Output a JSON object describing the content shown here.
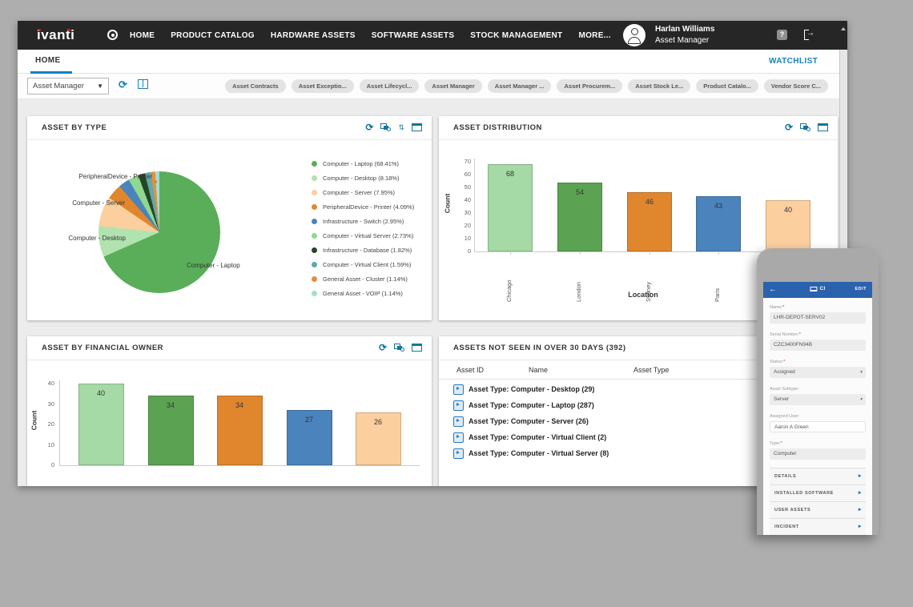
{
  "colors": {
    "accent": "#1482c0",
    "panel_icon_color": "#13749f",
    "navbar_bg": "#262626",
    "brand_dot": "#cc2127",
    "bar_palette": [
      "#a5d9a5",
      "#5ba352",
      "#e0872e",
      "#4b83bd",
      "#fbcf9e"
    ]
  },
  "navbar": {
    "brand": "ivanti",
    "items": [
      "HOME",
      "PRODUCT CATALOG",
      "HARDWARE ASSETS",
      "SOFTWARE ASSETS",
      "STOCK MANAGEMENT",
      "MORE..."
    ],
    "user": {
      "name": "Harlan Williams",
      "role": "Asset Manager"
    }
  },
  "tabs": {
    "home": "HOME",
    "watchlist": "WATCHLIST"
  },
  "toolbar": {
    "selector_value": "Asset Manager",
    "chips": [
      "Asset Contracts",
      "Asset Exceptio...",
      "Asset Lifecycl...",
      "Asset Manager",
      "Asset Manager ...",
      "Asset Procurem...",
      "Asset Stock Le...",
      "Product Catalo...",
      "Vendor Score C..."
    ]
  },
  "chart_data": [
    {
      "type": "pie",
      "title": "ASSET BY TYPE",
      "slices": [
        {
          "label": "Computer - Laptop",
          "pct": 68.41,
          "color": "#5aae5a",
          "legend": "Computer - Laptop (68.41%)"
        },
        {
          "label": "Computer - Desktop",
          "pct": 8.18,
          "color": "#b0e3b0",
          "legend": "Computer - Desktop (8.18%)"
        },
        {
          "label": "Computer - Server",
          "pct": 7.95,
          "color": "#fbcf9e",
          "legend": "Computer - Server (7.95%)"
        },
        {
          "label": "PeripheralDevice - Printer",
          "pct": 4.09,
          "color": "#e0872e",
          "legend": "PeripheralDevice - Printer (4.09%)"
        },
        {
          "label": "Infrastructure - Switch",
          "pct": 2.95,
          "color": "#4b83bd",
          "legend": "Infrastructure - Switch (2.95%)"
        },
        {
          "label": "Computer - Virtual Server",
          "pct": 2.73,
          "color": "#8fd88f",
          "legend": "Computer - Virtual Server (2.73%)"
        },
        {
          "label": "Infrastructure - Database",
          "pct": 1.82,
          "color": "#254623",
          "legend": "Infrastructure - Database (1.82%)"
        },
        {
          "label": "Computer - Virtual Client",
          "pct": 1.59,
          "color": "#5fa8ad",
          "legend": "Computer - Virtual Client (1.59%)"
        },
        {
          "label": "General Asset - Cluster",
          "pct": 1.14,
          "color": "#e0913f",
          "legend": "General Asset - Cluster (1.14%)"
        },
        {
          "label": "General Asset - VOIP",
          "pct": 1.14,
          "color": "#a5dcd2",
          "legend": "General Asset - VOIP (1.14%)"
        }
      ]
    },
    {
      "type": "bar",
      "title": "ASSET DISTRIBUTION",
      "xlabel": "Location",
      "ylabel": "Count",
      "ylim": [
        0,
        70
      ],
      "yticks": [
        0,
        10,
        20,
        30,
        40,
        50,
        60,
        70
      ],
      "categories": [
        "Chicago",
        "London",
        "Sydney",
        "Paris",
        ""
      ],
      "values": [
        68,
        54,
        46,
        43,
        40
      ],
      "colors": [
        "#a5d9a5",
        "#5ba352",
        "#e0872e",
        "#4b83bd",
        "#fbcf9e"
      ]
    },
    {
      "type": "bar",
      "title": "ASSET BY FINANCIAL OWNER",
      "xlabel": "",
      "ylabel": "Count",
      "ylim": [
        0,
        40
      ],
      "yticks": [
        0,
        10,
        20,
        30,
        40
      ],
      "categories": [
        "",
        "",
        "",
        "",
        ""
      ],
      "values": [
        40,
        34,
        34,
        27,
        26
      ],
      "colors": [
        "#a5d9a5",
        "#5ba352",
        "#e0872e",
        "#4b83bd",
        "#fbcf9e"
      ]
    }
  ],
  "assets_table": {
    "title": "ASSETS NOT SEEN IN OVER 30 DAYS (392)",
    "columns": [
      "Asset ID",
      "Name",
      "Asset Type"
    ],
    "rows": [
      "Asset Type: Computer - Desktop (29)",
      "Asset Type: Computer - Laptop (287)",
      "Asset Type: Computer - Server (26)",
      "Asset Type: Computer - Virtual Client (2)",
      "Asset Type: Computer - Virtual Server (8)"
    ]
  },
  "mobile": {
    "header": {
      "ci": "CI",
      "edit": "EDIT"
    },
    "fields": [
      {
        "label": "Name:",
        "required": true,
        "value": "LHR-DEPOT-SERV02",
        "kind": "gray"
      },
      {
        "label": "Serial Number:",
        "required": true,
        "value": "CZC3400FN94B",
        "kind": "gray"
      },
      {
        "label": "Status:",
        "required": true,
        "value": "Assigned",
        "kind": "select"
      },
      {
        "label": "Asset Subtype:",
        "required": false,
        "value": "Server",
        "kind": "select"
      },
      {
        "label": "Assigned User:",
        "required": false,
        "value": "Aaron A Green",
        "kind": "white"
      },
      {
        "label": "Type:",
        "required": true,
        "value": "Computer",
        "kind": "gray"
      }
    ],
    "sections": [
      "DETAILS",
      "INSTALLED SOFTWARE",
      "USER ASSETS",
      "INCIDENT"
    ]
  }
}
